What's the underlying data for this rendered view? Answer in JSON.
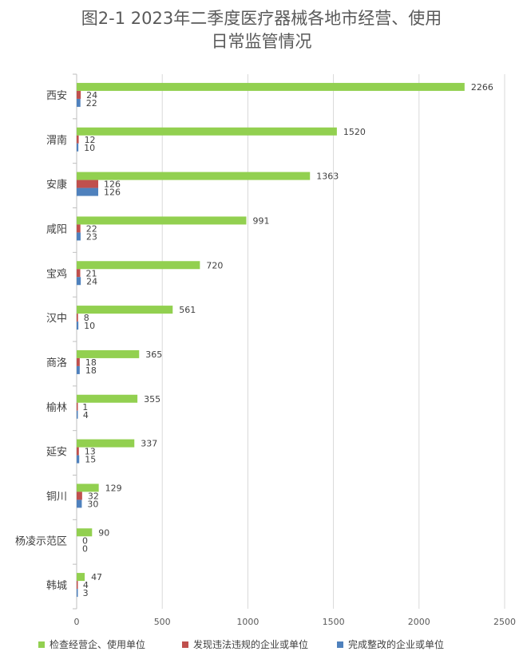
{
  "chart_data": {
    "type": "bar",
    "orientation": "horizontal",
    "title_lines": [
      "图2-1 2023年二季度医疗器械各地市经营、使用",
      "日常监管情况"
    ],
    "categories": [
      "西安",
      "渭南",
      "安康",
      "咸阳",
      "宝鸡",
      "汉中",
      "商洛",
      "榆林",
      "延安",
      "铜川",
      "杨凌示范区",
      "韩城"
    ],
    "series": [
      {
        "name": "检查经营企、使用单位",
        "color": "#92D050",
        "values": [
          2266,
          1520,
          1363,
          991,
          720,
          561,
          365,
          355,
          337,
          129,
          90,
          47
        ]
      },
      {
        "name": "发现违法违规的企业或单位",
        "color": "#C0504D",
        "values": [
          24,
          12,
          126,
          22,
          21,
          8,
          18,
          1,
          13,
          32,
          0,
          4
        ]
      },
      {
        "name": "完成整改的企业或单位",
        "color": "#4F81BD",
        "values": [
          22,
          10,
          126,
          23,
          24,
          10,
          18,
          4,
          15,
          30,
          0,
          3
        ]
      }
    ],
    "xticks": [
      0,
      500,
      1000,
      1500,
      2000,
      2500
    ],
    "xlim": [
      0,
      2500
    ],
    "grid": true,
    "legend_position": "bottom"
  }
}
